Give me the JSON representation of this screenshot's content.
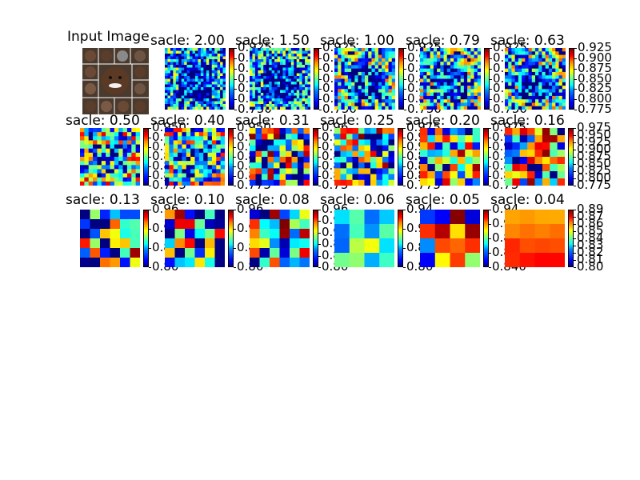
{
  "chart_data": {
    "type": "heatmap",
    "input_title": "Input Image",
    "colormap": "jet",
    "panels": [
      {
        "title": "sacle: 2.00",
        "ticks": [
          "0.925",
          "0.9",
          "0.8",
          "0.8",
          "0.8",
          "0.8",
          "0.750"
        ],
        "texture": "face-fine"
      },
      {
        "title": "sacle: 1.50",
        "ticks": [
          "0.925",
          "0.9",
          "0.8",
          "0.8",
          "0.8",
          "0.8",
          "0.750"
        ],
        "texture": "face-fine"
      },
      {
        "title": "sacle: 1.00",
        "ticks": [
          "0.925",
          "0.9",
          "0.8",
          "0.8",
          "0.8",
          "0.8",
          "0.750"
        ],
        "texture": "face-mid"
      },
      {
        "title": "sacle: 0.79",
        "ticks": [
          "0.925",
          "0.9",
          "0.8",
          "0.8",
          "0.8",
          "0.8",
          "0.750"
        ],
        "texture": "face-mid"
      },
      {
        "title": "sacle: 0.63",
        "ticks": [
          "0.925",
          "0.900",
          "0.875",
          "0.850",
          "0.825",
          "0.800",
          "0.775"
        ],
        "texture": "face-mid"
      },
      {
        "title": "sacle: 0.50",
        "ticks": [
          "0.950",
          "0.9",
          "0.9",
          "0.8",
          "0.8",
          "0.8",
          "0.775"
        ],
        "texture": "grid-face"
      },
      {
        "title": "sacle: 0.40",
        "ticks": [
          "0.950",
          "0.9",
          "0.9",
          "0.8",
          "0.8",
          "0.8",
          "0.775"
        ],
        "texture": "grid-face"
      },
      {
        "title": "sacle: 0.31",
        "ticks": [
          "0.96",
          "0.9",
          "0.9",
          "0.8",
          "0.8",
          "0.8",
          "0.75"
        ],
        "texture": "grid-coarse"
      },
      {
        "title": "sacle: 0.25",
        "ticks": [
          "0.975",
          "0.9",
          "0.9",
          "0.8",
          "0.8",
          "0.8",
          "0.775"
        ],
        "texture": "grid-coarse"
      },
      {
        "title": "sacle: 0.20",
        "ticks": [
          "0.975",
          "0.9",
          "0.9",
          "0.8",
          "0.8",
          "0.8",
          "0.75"
        ],
        "texture": "blob"
      },
      {
        "title": "sacle: 0.16",
        "ticks": [
          "0.975",
          "0.950",
          "0.925",
          "0.900",
          "0.875",
          "0.850",
          "0.825",
          "0.800",
          "0.775"
        ],
        "texture": "blob"
      },
      {
        "title": "sacle: 0.13",
        "ticks": [
          "0.96",
          "0.9",
          "0.8",
          "0.80"
        ],
        "texture": "blob-big"
      },
      {
        "title": "sacle: 0.10",
        "ticks": [
          "0.96",
          "0.9",
          "0.8",
          "0.80"
        ],
        "texture": "blob-big"
      },
      {
        "title": "sacle: 0.08",
        "ticks": [
          "0.96",
          "0.9",
          "0.9",
          "0.8",
          "0.8",
          "0.80"
        ],
        "texture": "blob-red"
      },
      {
        "title": "sacle: 0.06",
        "ticks": [
          "0.94",
          "0.9",
          "0.8",
          "0.80"
        ],
        "texture": "smooth-cyan"
      },
      {
        "title": "sacle: 0.05",
        "ticks": [
          "0.94",
          "0.9",
          "0.8",
          "0.8",
          "0.840"
        ],
        "texture": "smooth-red"
      },
      {
        "title": "sacle: 0.04",
        "ticks": [
          "0.89",
          "0.87",
          "0.86",
          "0.85",
          "0.84",
          "0.83",
          "0.82",
          "0.81",
          "0.80"
        ],
        "texture": "smooth-orange"
      }
    ]
  }
}
